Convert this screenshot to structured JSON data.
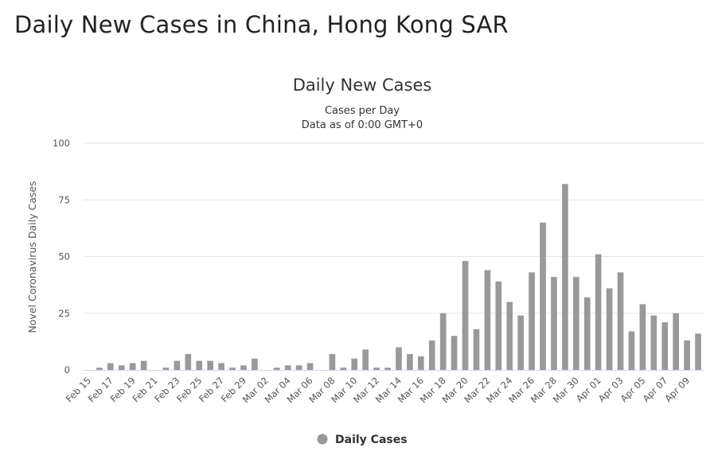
{
  "page": {
    "title": "Daily New Cases in China, Hong Kong SAR"
  },
  "chart_data": {
    "type": "bar",
    "title": "Daily New Cases",
    "subtitle_lines": [
      "Cases per Day",
      "Data as of 0:00 GMT+0"
    ],
    "ylabel": "Novel Coronavirus Daily Cases",
    "xlabel": "",
    "ylim": [
      0,
      100
    ],
    "yticks": [
      0,
      25,
      50,
      75,
      100
    ],
    "grid": true,
    "legend_position": "bottom-center",
    "bar_color": "#999999",
    "categories": [
      "Feb 15",
      "Feb 16",
      "Feb 17",
      "Feb 18",
      "Feb 19",
      "Feb 20",
      "Feb 21",
      "Feb 22",
      "Feb 23",
      "Feb 24",
      "Feb 25",
      "Feb 26",
      "Feb 27",
      "Feb 28",
      "Feb 29",
      "Mar 01",
      "Mar 02",
      "Mar 03",
      "Mar 04",
      "Mar 05",
      "Mar 06",
      "Mar 07",
      "Mar 08",
      "Mar 09",
      "Mar 10",
      "Mar 11",
      "Mar 12",
      "Mar 13",
      "Mar 14",
      "Mar 15",
      "Mar 16",
      "Mar 17",
      "Mar 18",
      "Mar 19",
      "Mar 20",
      "Mar 21",
      "Mar 22",
      "Mar 23",
      "Mar 24",
      "Mar 25",
      "Mar 26",
      "Mar 27",
      "Mar 28",
      "Mar 29",
      "Mar 30",
      "Mar 31",
      "Apr 01",
      "Apr 02",
      "Apr 03",
      "Apr 04",
      "Apr 05",
      "Apr 06",
      "Apr 07",
      "Apr 08",
      "Apr 09",
      "Apr 10"
    ],
    "tick_labels": [
      "Feb 15",
      "Feb 17",
      "Feb 19",
      "Feb 21",
      "Feb 23",
      "Feb 25",
      "Feb 27",
      "Feb 29",
      "Mar 02",
      "Mar 04",
      "Mar 06",
      "Mar 08",
      "Mar 10",
      "Mar 12",
      "Mar 14",
      "Mar 16",
      "Mar 18",
      "Mar 20",
      "Mar 22",
      "Mar 24",
      "Mar 26",
      "Mar 28",
      "Mar 30",
      "Apr 01",
      "Apr 03",
      "Apr 05",
      "Apr 07",
      "Apr 09"
    ],
    "series": [
      {
        "name": "Daily Cases",
        "values": [
          0,
          1,
          3,
          2,
          3,
          4,
          0,
          1,
          4,
          7,
          4,
          4,
          3,
          1,
          2,
          5,
          0,
          1,
          2,
          2,
          3,
          0,
          7,
          1,
          5,
          9,
          1,
          1,
          10,
          7,
          6,
          13,
          25,
          15,
          48,
          18,
          44,
          39,
          30,
          24,
          43,
          65,
          41,
          82,
          41,
          32,
          51,
          36,
          43,
          17,
          29,
          24,
          21,
          25,
          13,
          16
        ]
      }
    ]
  }
}
